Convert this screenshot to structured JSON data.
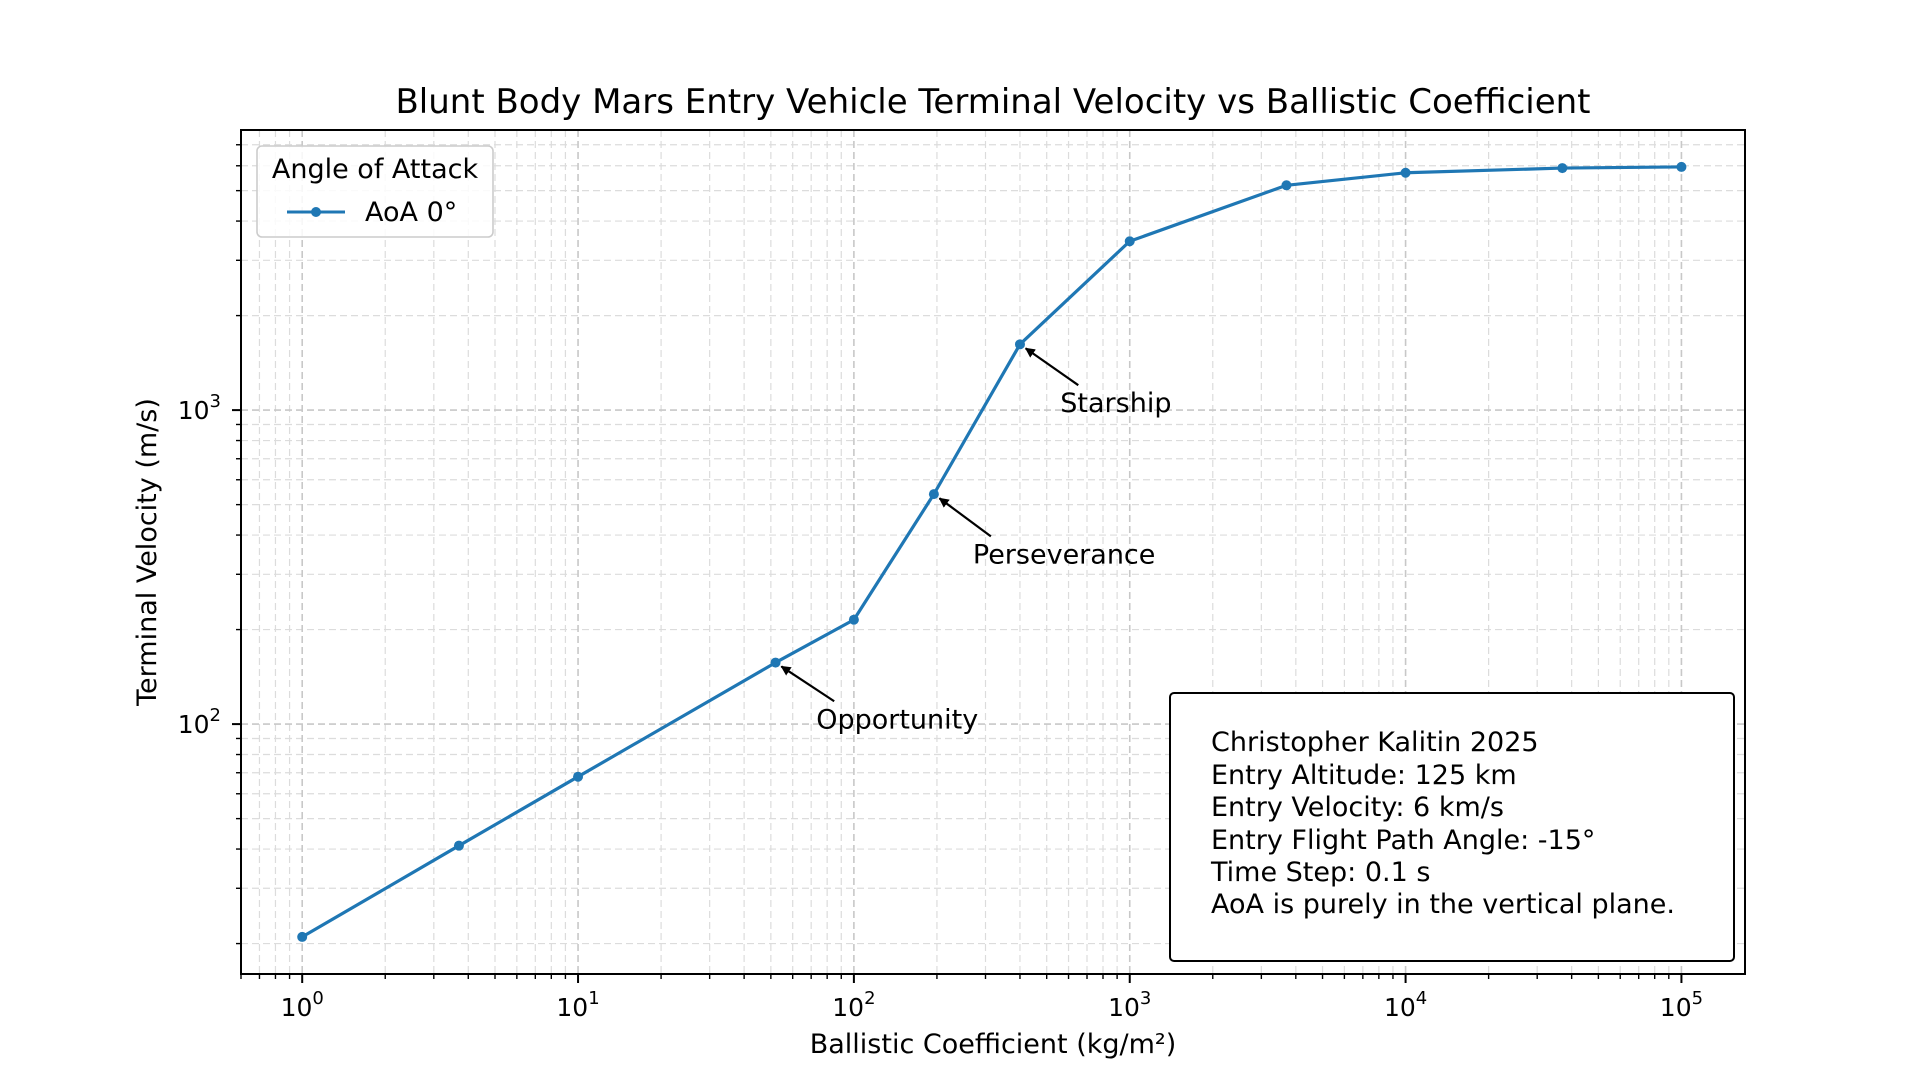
{
  "chart_data": {
    "type": "line",
    "title": "Blunt Body Mars Entry Vehicle Terminal Velocity vs Ballistic Coefficient",
    "xlabel": "Ballistic Coefficient (kg/m²)",
    "ylabel": "Terminal Velocity (m/s)",
    "xscale": "log",
    "yscale": "log",
    "xlim": [
      0.6,
      170000
    ],
    "ylim": [
      16,
      7800
    ],
    "grid": true,
    "x_ticks": [
      {
        "base": "10",
        "exp": "0",
        "value": 1
      },
      {
        "base": "10",
        "exp": "1",
        "value": 10
      },
      {
        "base": "10",
        "exp": "2",
        "value": 100
      },
      {
        "base": "10",
        "exp": "3",
        "value": 1000
      },
      {
        "base": "10",
        "exp": "4",
        "value": 10000
      },
      {
        "base": "10",
        "exp": "5",
        "value": 100000
      }
    ],
    "y_ticks": [
      {
        "base": "10",
        "exp": "2",
        "value": 100
      },
      {
        "base": "10",
        "exp": "3",
        "value": 1000
      }
    ],
    "legend": {
      "title": "Angle of Attack",
      "placement": "upper-left"
    },
    "series": [
      {
        "name": "AoA 0°",
        "color": "#1f77b4",
        "x": [
          1,
          3.7,
          10,
          52,
          100,
          195,
          400,
          1000,
          3700,
          10000,
          37000,
          100000
        ],
        "y": [
          21,
          41,
          68,
          157,
          215,
          540,
          1620,
          3450,
          5200,
          5700,
          5900,
          5950
        ]
      }
    ],
    "annotations": [
      {
        "text": "Opportunity",
        "point": [
          52,
          157
        ],
        "text_pos": [
          73,
          97
        ]
      },
      {
        "text": "Perseverance",
        "point": [
          195,
          540
        ],
        "text_pos": [
          270,
          325
        ]
      },
      {
        "text": "Starship",
        "point": [
          400,
          1620
        ],
        "text_pos": [
          560,
          985
        ]
      }
    ],
    "info_box": {
      "placement": "lower-right",
      "lines": [
        "Christopher Kalitin 2025",
        "Entry Altitude: 125 km",
        "Entry Velocity: 6 km/s",
        "Entry Flight Path Angle: -15°",
        "Time Step: 0.1 s",
        "AoA is purely in the vertical plane."
      ]
    }
  }
}
